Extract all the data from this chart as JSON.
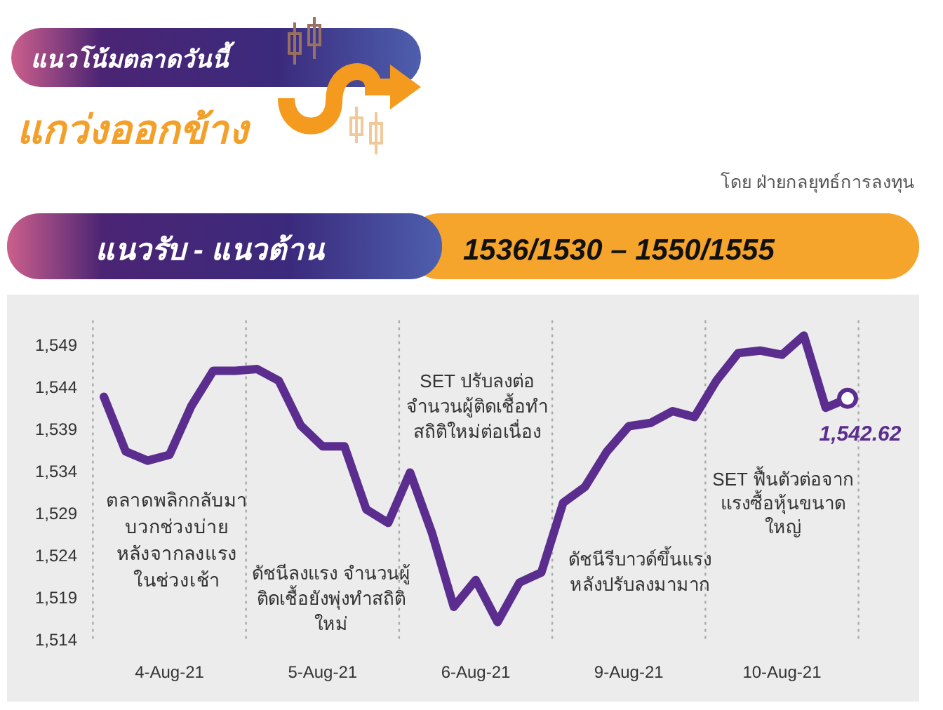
{
  "chart_data": {
    "type": "line",
    "title": "แนวโน้มตลาดวันนี้",
    "subtitle": "แกว่งออกข้าง",
    "annotations": [
      "โดย ฝ่ายกลยุทธ์การลงทุน",
      "แนวรับ - แนวต้าน",
      "1536/1530 – 1550/1555",
      "ตลาดพลิกกลับมา\nบวกช่วงบ่าย\nหลังจากลงแรง\nในช่วงเช้า",
      "ดัชนีลงแรง จำนวนผู้\nติดเชื้อยังพุ่งทำสถิติ\nใหม่",
      "SET ปรับลงต่อ\nจำนวนผู้ติดเชื้อทำ\nสถิติใหม่ต่อเนื่อง",
      "ดัชนีรีบาวด์ขึ้นแรง\nหลังปรับลงมามาก",
      "SET ฟื้นตัวต่อจาก\nแรงซื้อหุ้นขนาด\nใหญ่"
    ],
    "categories": [
      null,
      null,
      null,
      "4-Aug-21",
      null,
      null,
      null,
      null,
      null,
      null,
      "5-Aug-21",
      null,
      null,
      null,
      null,
      null,
      null,
      "6-Aug-21",
      null,
      null,
      null,
      null,
      null,
      null,
      "9-Aug-21",
      null,
      null,
      null,
      null,
      null,
      null,
      "10-Aug-21",
      null,
      null,
      null
    ],
    "series": [
      {
        "color": "#5b2d8e",
        "values": [
          1542.8,
          1536.3,
          1535.2,
          1535.9,
          1541.7,
          1545.9,
          1545.9,
          1546.1,
          1544.7,
          1539.4,
          1536.9,
          1536.9,
          1529.4,
          1527.8,
          1533.8,
          1526.6,
          1517.8,
          1521.0,
          1516.0,
          1520.7,
          1521.9,
          1530.2,
          1532.1,
          1536.3,
          1539.3,
          1539.7,
          1541.1,
          1540.4,
          1544.7,
          1548.0,
          1548.3,
          1547.8,
          1550.1,
          1541.5,
          1542.6
        ]
      },
      {
        "type": "scatter",
        "color": "#5b2d8e",
        "marker": "circle",
        "values": [
          null,
          null,
          null,
          null,
          null,
          null,
          null,
          null,
          null,
          null,
          null,
          null,
          null,
          null,
          null,
          null,
          null,
          null,
          null,
          null,
          null,
          null,
          null,
          null,
          null,
          null,
          null,
          null,
          null,
          null,
          null,
          null,
          null,
          null,
          1542.62
        ],
        "value_labels": [
          null,
          null,
          null,
          null,
          null,
          null,
          null,
          null,
          null,
          null,
          null,
          null,
          null,
          null,
          null,
          null,
          null,
          null,
          null,
          null,
          null,
          null,
          null,
          null,
          null,
          null,
          null,
          null,
          null,
          null,
          null,
          null,
          null,
          null,
          "1,542.62"
        ]
      }
    ],
    "ylim": [
      1514,
      1552
    ],
    "yticks": [
      {
        "value": 1514,
        "label": "1,514"
      },
      {
        "value": 1519,
        "label": "1,519"
      },
      {
        "value": 1524,
        "label": "1,524"
      },
      {
        "value": 1529,
        "label": "1,529"
      },
      {
        "value": 1534,
        "label": "1,534"
      },
      {
        "value": 1539,
        "label": "1,539"
      },
      {
        "value": 1544,
        "label": "1,544"
      },
      {
        "value": 1549,
        "label": "1,549"
      }
    ]
  }
}
